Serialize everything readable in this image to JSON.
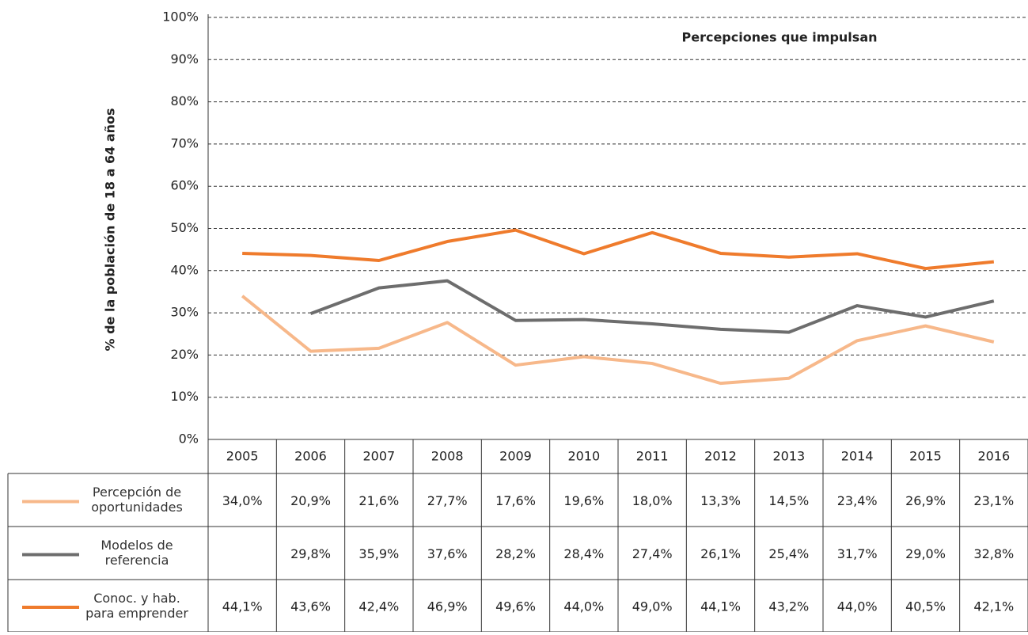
{
  "chart_data": {
    "type": "line",
    "title": "Percepciones que impulsan",
    "y_label": "% de la población de 18 a 64 años",
    "categories": [
      "2005",
      "2006",
      "2007",
      "2008",
      "2009",
      "2010",
      "2011",
      "2012",
      "2013",
      "2014",
      "2015",
      "2016"
    ],
    "ylim": [
      0,
      100
    ],
    "yticks": [
      {
        "value": 0,
        "label": "0%"
      },
      {
        "value": 10,
        "label": "10%"
      },
      {
        "value": 20,
        "label": "20%"
      },
      {
        "value": 30,
        "label": "30%"
      },
      {
        "value": 40,
        "label": "40%"
      },
      {
        "value": 50,
        "label": "50%"
      },
      {
        "value": 60,
        "label": "60%"
      },
      {
        "value": 70,
        "label": "70%"
      },
      {
        "value": 80,
        "label": "80%"
      },
      {
        "value": 90,
        "label": "90%"
      },
      {
        "value": 100,
        "label": "100%"
      }
    ],
    "grid": true,
    "series": [
      {
        "name": "Percepción de oportunidades",
        "color": "#f7b88a",
        "values": [
          34.0,
          20.9,
          21.6,
          27.7,
          17.6,
          19.6,
          18.0,
          13.3,
          14.5,
          23.4,
          26.9,
          23.1
        ],
        "value_labels": [
          "34,0%",
          "20,9%",
          "21,6%",
          "27,7%",
          "17,6%",
          "19,6%",
          "18,0%",
          "13,3%",
          "14,5%",
          "23,4%",
          "26,9%",
          "23,1%"
        ]
      },
      {
        "name": "Modelos de referencia",
        "color": "#6d6d6d",
        "values": [
          null,
          29.8,
          35.9,
          37.6,
          28.2,
          28.4,
          27.4,
          26.1,
          25.4,
          31.7,
          29.0,
          32.8
        ],
        "value_labels": [
          null,
          "29,8%",
          "35,9%",
          "37,6%",
          "28,2%",
          "28,4%",
          "27,4%",
          "26,1%",
          "25,4%",
          "31,7%",
          "29,0%",
          "32,8%"
        ]
      },
      {
        "name": "Conoc. y hab. para emprender",
        "color": "#ef7b2c",
        "values": [
          44.1,
          43.6,
          42.4,
          46.9,
          49.6,
          44.0,
          49.0,
          44.1,
          43.2,
          44.0,
          40.5,
          42.1
        ],
        "value_labels": [
          "44,1%",
          "43,6%",
          "42,4%",
          "46,9%",
          "49,6%",
          "44,0%",
          "49,0%",
          "44,1%",
          "43,2%",
          "44,0%",
          "40,5%",
          "42,1%"
        ]
      }
    ]
  }
}
